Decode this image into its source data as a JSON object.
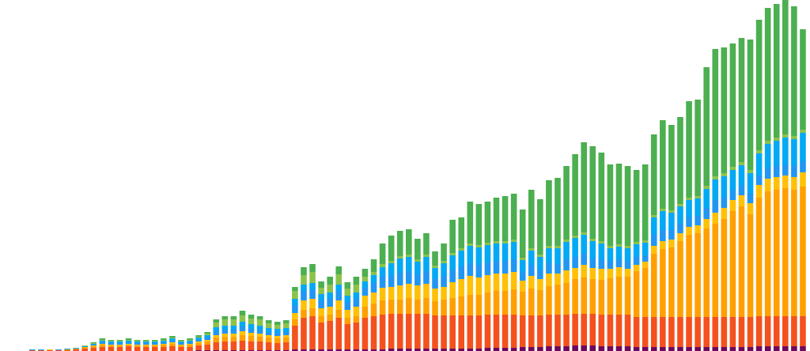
{
  "chart_data": {
    "type": "stacked_bar",
    "ylim": [
      0,
      444
    ],
    "series": [
      {
        "color": "#6d0a5c",
        "values": [
          0,
          0,
          0,
          0,
          0,
          0,
          0,
          0,
          0,
          0,
          0,
          0,
          0,
          0,
          0,
          0,
          0,
          0,
          0,
          1,
          1,
          1,
          1,
          1,
          1,
          1,
          1,
          1,
          1,
          1,
          2,
          2,
          2,
          2,
          2,
          2,
          2,
          2,
          2,
          2,
          2,
          3,
          3,
          3,
          3,
          3,
          3,
          3,
          3,
          3,
          3,
          3,
          4,
          4,
          4,
          4,
          5,
          5,
          5,
          6,
          6,
          6,
          7,
          7,
          7,
          6,
          6,
          6,
          6,
          5,
          5,
          5,
          5,
          5,
          5,
          5,
          5,
          5,
          5,
          5,
          5,
          5,
          5,
          6,
          6,
          6,
          6,
          6,
          6
        ]
      },
      {
        "color": "#f4511e",
        "values": [
          1,
          1,
          1,
          1,
          1,
          2,
          3,
          4,
          5,
          5,
          5,
          6,
          5,
          5,
          5,
          5,
          6,
          5,
          5,
          6,
          7,
          10,
          11,
          11,
          12,
          11,
          11,
          10,
          9,
          10,
          30,
          40,
          42,
          34,
          36,
          40,
          32,
          34,
          40,
          42,
          44,
          44,
          44,
          44,
          44,
          44,
          42,
          42,
          42,
          42,
          42,
          42,
          42,
          42,
          42,
          42,
          40,
          40,
          40,
          40,
          40,
          40,
          40,
          40,
          40,
          40,
          40,
          40,
          40,
          38,
          38,
          38,
          38,
          38,
          38,
          38,
          38,
          38,
          38,
          38,
          38,
          38,
          38,
          38,
          38,
          38,
          38,
          38,
          38
        ]
      },
      {
        "color": "#ffa000",
        "values": [
          0,
          0,
          0,
          0,
          1,
          1,
          2,
          2,
          3,
          2,
          2,
          2,
          2,
          2,
          2,
          3,
          3,
          2,
          3,
          3,
          4,
          6,
          6,
          6,
          7,
          7,
          6,
          6,
          6,
          6,
          8,
          10,
          10,
          8,
          8,
          10,
          8,
          8,
          14,
          16,
          18,
          18,
          18,
          20,
          18,
          20,
          18,
          20,
          22,
          24,
          26,
          26,
          28,
          30,
          30,
          32,
          30,
          34,
          32,
          36,
          38,
          40,
          44,
          46,
          44,
          44,
          46,
          48,
          48,
          58,
          62,
          80,
          86,
          88,
          96,
          104,
          106,
          112,
          118,
          124,
          134,
          140,
          130,
          150,
          158,
          160,
          162,
          160,
          164
        ]
      },
      {
        "color": "#ffc107",
        "values": [
          0,
          0,
          1,
          0,
          0,
          0,
          0,
          1,
          1,
          1,
          1,
          1,
          1,
          1,
          1,
          1,
          2,
          1,
          1,
          2,
          2,
          3,
          4,
          4,
          5,
          4,
          4,
          3,
          3,
          3,
          8,
          12,
          12,
          10,
          10,
          12,
          10,
          12,
          14,
          14,
          16,
          16,
          18,
          18,
          18,
          18,
          16,
          16,
          20,
          22,
          24,
          22,
          22,
          22,
          22,
          22,
          14,
          16,
          14,
          16,
          14,
          16,
          14,
          16,
          14,
          14,
          12,
          12,
          10,
          8,
          8,
          10,
          10,
          10,
          10,
          10,
          10,
          12,
          14,
          14,
          14,
          14,
          14,
          16,
          16,
          16,
          16,
          16,
          18
        ]
      },
      {
        "color": "#2196f3",
        "values": [
          0,
          0,
          0,
          1,
          0,
          0,
          0,
          1,
          2,
          2,
          2,
          2,
          2,
          2,
          2,
          2,
          2,
          2,
          2,
          2,
          3,
          5,
          5,
          5,
          6,
          5,
          5,
          4,
          4,
          4,
          10,
          12,
          12,
          10,
          10,
          12,
          10,
          10,
          10,
          12,
          14,
          14,
          16,
          16,
          14,
          16,
          12,
          14,
          16,
          16,
          16,
          16,
          16,
          16,
          16,
          16,
          12,
          14,
          12,
          14,
          12,
          14,
          14,
          14,
          12,
          12,
          10,
          10,
          10,
          10,
          8,
          14,
          14,
          12,
          12,
          12,
          12,
          14,
          16,
          14,
          12,
          12,
          12,
          12,
          14,
          14,
          14,
          14,
          14
        ]
      },
      {
        "color": "#03a9f4",
        "values": [
          1,
          1,
          0,
          0,
          1,
          1,
          1,
          1,
          2,
          2,
          2,
          2,
          2,
          2,
          2,
          2,
          3,
          2,
          2,
          3,
          3,
          5,
          5,
          5,
          6,
          6,
          5,
          5,
          5,
          5,
          8,
          8,
          8,
          8,
          8,
          8,
          8,
          8,
          8,
          10,
          12,
          16,
          18,
          18,
          16,
          18,
          14,
          16,
          18,
          20,
          22,
          22,
          22,
          22,
          22,
          22,
          14,
          18,
          16,
          18,
          20,
          22,
          24,
          24,
          22,
          20,
          16,
          16,
          16,
          16,
          16,
          22,
          24,
          22,
          22,
          22,
          22,
          24,
          26,
          26,
          26,
          26,
          26,
          28,
          30,
          32,
          34,
          34,
          36
        ]
      },
      {
        "color": "#8bc34a",
        "values": [
          0,
          0,
          0,
          0,
          0,
          0,
          1,
          1,
          1,
          1,
          1,
          1,
          1,
          1,
          1,
          1,
          1,
          1,
          1,
          1,
          2,
          6,
          8,
          8,
          8,
          7,
          8,
          6,
          5,
          6,
          10,
          12,
          14,
          8,
          10,
          13,
          9,
          10,
          6,
          4,
          4,
          3,
          3,
          3,
          3,
          3,
          3,
          3,
          3,
          3,
          3,
          3,
          3,
          3,
          3,
          3,
          3,
          3,
          3,
          3,
          3,
          3,
          3,
          3,
          3,
          3,
          3,
          3,
          3,
          3,
          3,
          3,
          3,
          3,
          3,
          3,
          3,
          4,
          4,
          4,
          4,
          4,
          4,
          4,
          4,
          4,
          4,
          4,
          4
        ]
      },
      {
        "color": "#4caf50",
        "values": [
          0,
          0,
          0,
          0,
          0,
          0,
          0,
          1,
          2,
          1,
          1,
          2,
          1,
          1,
          1,
          2,
          2,
          1,
          2,
          2,
          2,
          4,
          4,
          4,
          6,
          5,
          4,
          4,
          4,
          4,
          5,
          10,
          10,
          8,
          10,
          10,
          8,
          10,
          10,
          16,
          26,
          32,
          32,
          32,
          26,
          27,
          18,
          22,
          42,
          39,
          53,
          52,
          52,
          55,
          57,
          58,
          61,
          74,
          70,
          83,
          86,
          93,
          103,
          114,
          117,
          112,
          103,
          102,
          101,
          91,
          96,
          102,
          112,
          108,
          110,
          122,
          122,
          150,
          161,
          159,
          156,
          157,
          165,
          165,
          168,
          169,
          170,
          164,
          127
        ]
      }
    ]
  }
}
